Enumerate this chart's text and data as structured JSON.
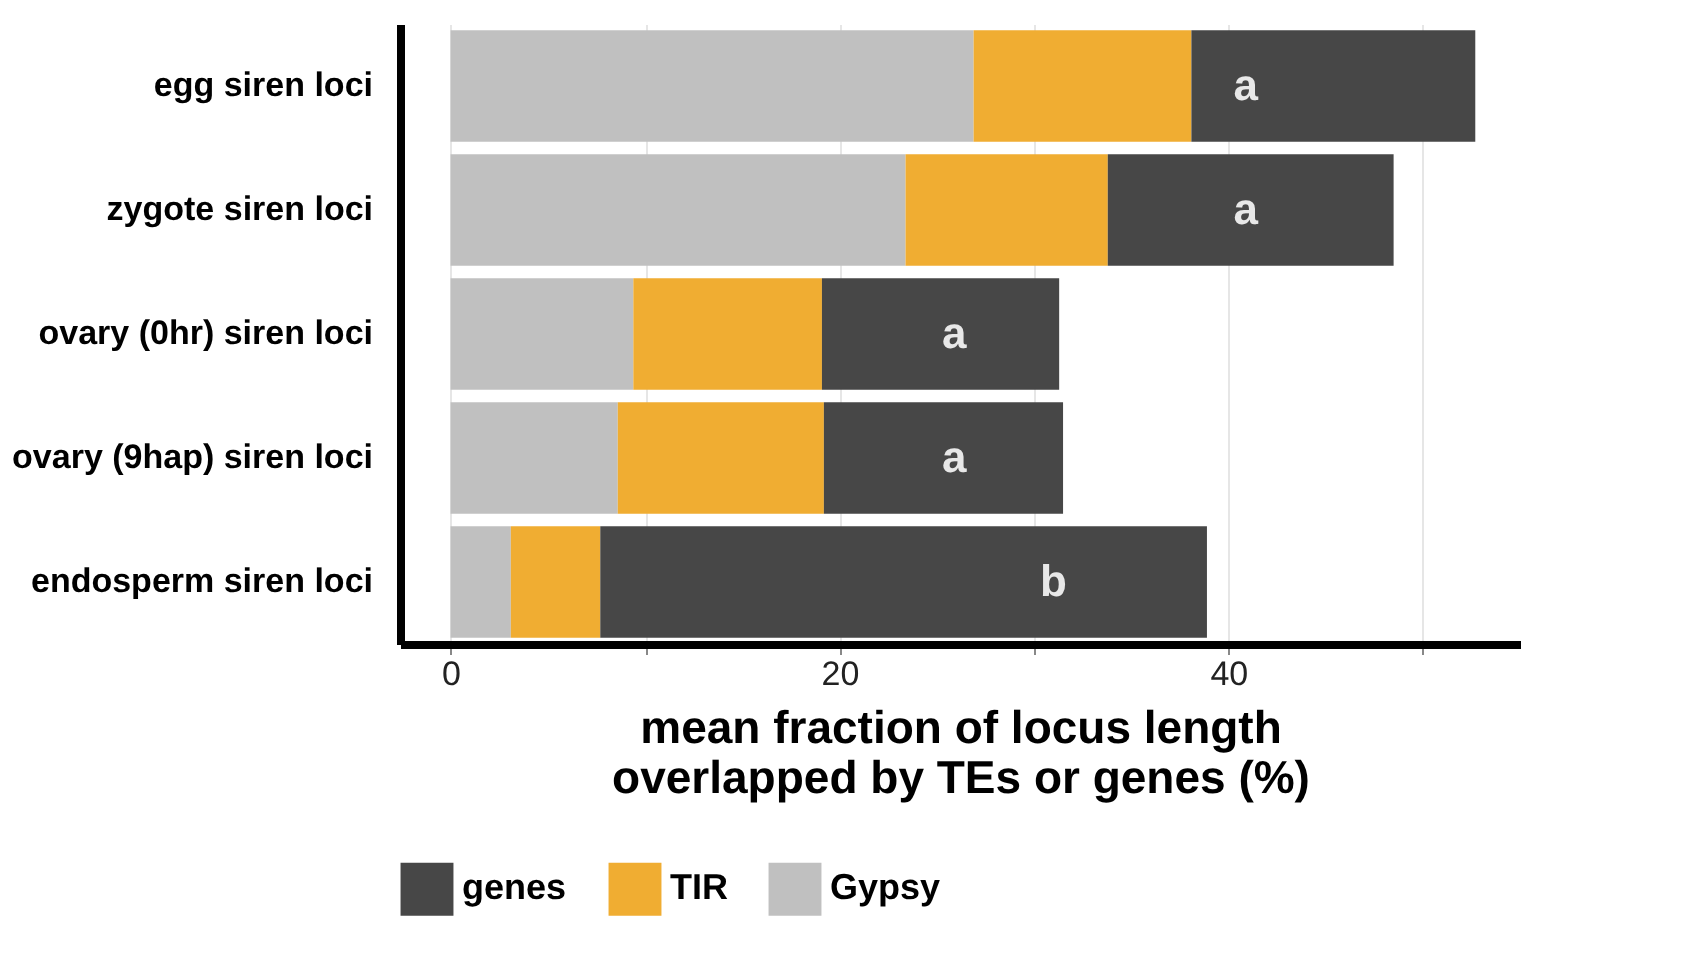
{
  "chart_data": {
    "type": "bar",
    "orientation": "horizontal",
    "stacked": true,
    "categories": [
      "egg siren loci",
      "zygote siren loci",
      "ovary (0hr) siren loci",
      "ovary (9hap) siren loci",
      "endosperm siren loci"
    ],
    "series": [
      {
        "name": "Gypsy",
        "color": "#c0c0c0",
        "values": [
          26.9,
          23.4,
          9.4,
          8.6,
          3.1
        ]
      },
      {
        "name": "TIR",
        "color": "#f0ad32",
        "values": [
          11.2,
          10.4,
          9.7,
          10.6,
          4.6
        ]
      },
      {
        "name": "genes",
        "color": "#474747",
        "values": [
          14.6,
          14.7,
          12.2,
          12.3,
          31.2
        ]
      }
    ],
    "xlabel": "mean fraction of locus length\noverlapped by TEs or genes (%)",
    "xlim": [
      -2.6,
      55
    ],
    "xticks": [
      0,
      {
        "value": 10,
        "label": null
      },
      20,
      {
        "value": 30,
        "label": null
      },
      40,
      {
        "value": 50,
        "label": null
      }
    ],
    "grid": "x",
    "legend": "bottom",
    "annotations": [
      {
        "text": "a",
        "x": 40.9,
        "y": "egg siren loci"
      },
      {
        "text": "a",
        "x": 40.9,
        "y": "zygote siren loci"
      },
      {
        "text": "a",
        "x": 25.9,
        "y": "ovary (0hr) siren loci"
      },
      {
        "text": "a",
        "x": 25.9,
        "y": "ovary (9hap) siren loci"
      },
      {
        "text": "b",
        "x": 31.0,
        "y": "endosperm siren loci"
      }
    ]
  }
}
